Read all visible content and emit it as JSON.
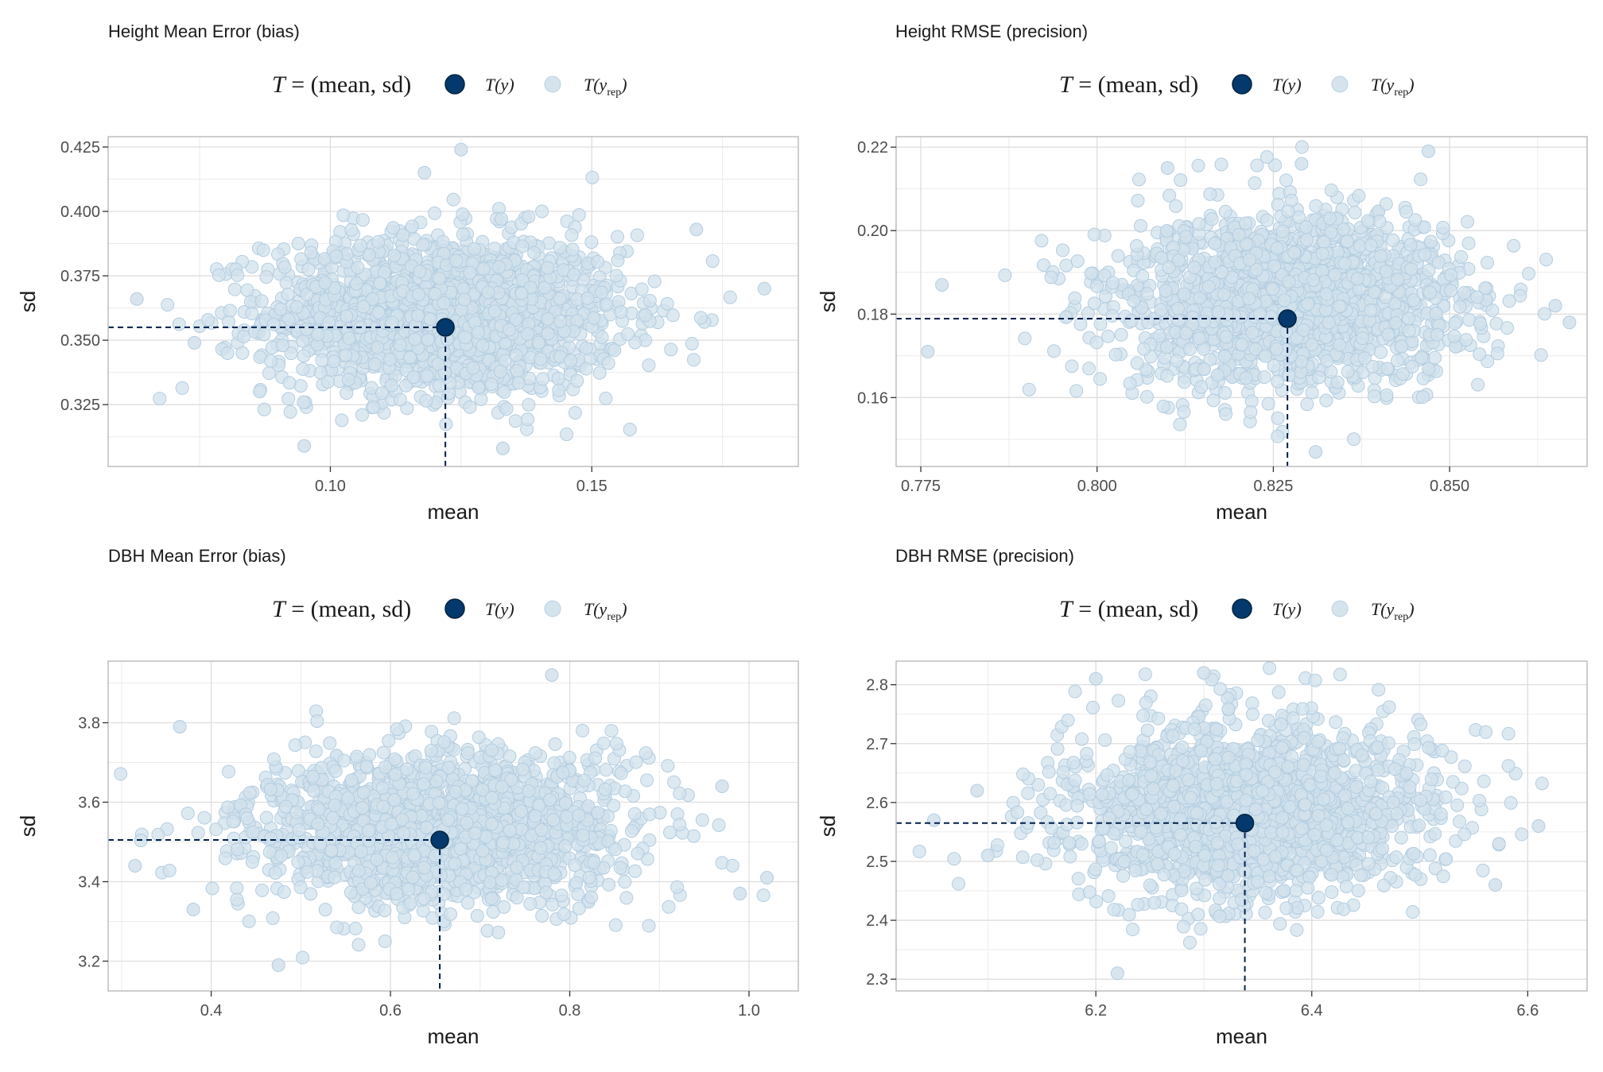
{
  "legend": {
    "lhs": "T",
    "equals": "=",
    "stat": "(mean, sd)",
    "item_observed": "T(y)",
    "item_rep_main": "T(y",
    "item_rep_sub": "rep",
    "item_rep_close": ")",
    "observed_color": "#03396c",
    "rep_color": "#d1e1ec",
    "rep_stroke": "#b3cde0"
  },
  "chart_data": [
    {
      "type": "scatter",
      "title": "Height Mean Error (bias)",
      "xlabel": "mean",
      "ylabel": "sd",
      "xlim": [
        0.0575,
        0.1895
      ],
      "ylim": [
        0.301,
        0.429
      ],
      "xticks": [
        0.1,
        0.15
      ],
      "xtick_labels": [
        "0.10",
        "0.15"
      ],
      "yticks": [
        0.325,
        0.35,
        0.375,
        0.4,
        0.425
      ],
      "ytick_labels": [
        "0.325",
        "0.350",
        "0.375",
        "0.400",
        "0.425"
      ],
      "observed": {
        "x": 0.122,
        "y": 0.355
      },
      "rep_center": [
        0.122,
        0.36
      ],
      "rep_spread": [
        0.017,
        0.0155
      ],
      "rep_count": 1800,
      "rep_outliers": [
        [
          0.183,
          0.37
        ],
        [
          0.063,
          0.366
        ],
        [
          0.125,
          0.424
        ],
        [
          0.118,
          0.415
        ],
        [
          0.095,
          0.309
        ],
        [
          0.133,
          0.308
        ],
        [
          0.17,
          0.393
        ],
        [
          0.074,
          0.349
        ]
      ],
      "grid": true
    },
    {
      "type": "scatter",
      "title": "Height RMSE (precision)",
      "xlabel": "mean",
      "ylabel": "sd",
      "xlim": [
        0.7715,
        0.8695
      ],
      "ylim": [
        0.1435,
        0.2225
      ],
      "xticks": [
        0.775,
        0.8,
        0.825,
        0.85
      ],
      "xtick_labels": [
        "0.775",
        "0.800",
        "0.825",
        "0.850"
      ],
      "yticks": [
        0.16,
        0.18,
        0.2,
        0.22
      ],
      "ytick_labels": [
        "0.16",
        "0.18",
        "0.20",
        "0.22"
      ],
      "observed": {
        "x": 0.827,
        "y": 0.1789
      },
      "rep_center": [
        0.827,
        0.183
      ],
      "rep_spread": [
        0.0125,
        0.0105
      ],
      "rep_count": 1800,
      "rep_outliers": [
        [
          0.778,
          0.187
        ],
        [
          0.776,
          0.171
        ],
        [
          0.867,
          0.178
        ],
        [
          0.865,
          0.182
        ],
        [
          0.847,
          0.219
        ],
        [
          0.831,
          0.147
        ],
        [
          0.81,
          0.215
        ],
        [
          0.829,
          0.216
        ]
      ],
      "grid": true
    },
    {
      "type": "scatter",
      "title": "DBH Mean Error (bias)",
      "xlabel": "mean",
      "ylabel": "sd",
      "xlim": [
        0.285,
        1.055
      ],
      "ylim": [
        3.125,
        3.955
      ],
      "xticks": [
        0.4,
        0.6,
        0.8,
        1.0
      ],
      "xtick_labels": [
        "0.4",
        "0.6",
        "0.8",
        "1.0"
      ],
      "yticks": [
        3.2,
        3.4,
        3.6,
        3.8
      ],
      "ytick_labels": [
        "3.2",
        "3.4",
        "3.6",
        "3.8"
      ],
      "observed": {
        "x": 0.655,
        "y": 3.505
      },
      "rep_center": [
        0.655,
        3.53
      ],
      "rep_spread": [
        0.105,
        0.095
      ],
      "rep_count": 1800,
      "rep_outliers": [
        [
          1.02,
          3.41
        ],
        [
          0.315,
          3.44
        ],
        [
          0.365,
          3.79
        ],
        [
          0.78,
          3.92
        ],
        [
          0.475,
          3.19
        ],
        [
          0.99,
          3.37
        ],
        [
          0.97,
          3.64
        ],
        [
          0.38,
          3.33
        ]
      ],
      "grid": true
    },
    {
      "type": "scatter",
      "title": "DBH RMSE (precision)",
      "xlabel": "mean",
      "ylabel": "sd",
      "xlim": [
        6.015,
        6.655
      ],
      "ylim": [
        2.28,
        2.84
      ],
      "xticks": [
        6.2,
        6.4,
        6.6
      ],
      "xtick_labels": [
        "6.2",
        "6.4",
        "6.6"
      ],
      "yticks": [
        2.3,
        2.4,
        2.5,
        2.6,
        2.7,
        2.8
      ],
      "ytick_labels": [
        "2.3",
        "2.4",
        "2.5",
        "2.6",
        "2.7",
        "2.8"
      ],
      "observed": {
        "x": 6.338,
        "y": 2.565
      },
      "rep_center": [
        6.34,
        2.59
      ],
      "rep_spread": [
        0.085,
        0.075
      ],
      "rep_count": 1800,
      "rep_outliers": [
        [
          6.61,
          2.56
        ],
        [
          6.05,
          2.57
        ],
        [
          6.09,
          2.62
        ],
        [
          6.22,
          2.31
        ],
        [
          6.2,
          2.81
        ],
        [
          6.3,
          2.82
        ],
        [
          6.57,
          2.46
        ],
        [
          6.1,
          2.51
        ]
      ],
      "grid": true
    }
  ]
}
